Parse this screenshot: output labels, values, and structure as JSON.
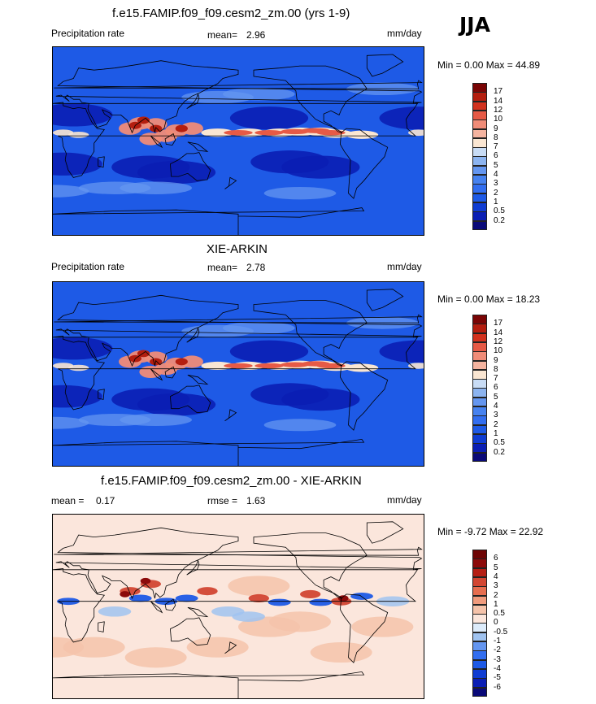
{
  "header": {
    "season": "JJA"
  },
  "panels": [
    {
      "title": "f.e15.FAMIP.f09_f09.cesm2_zm.00 (yrs 1-9)",
      "left_label": "Precipitation rate",
      "center_label": "mean=",
      "center_value": "2.96",
      "right_label": "mm/day",
      "minmax": "Min =   0.00 Max =  44.89",
      "colorbar_labels": [
        "17",
        "14",
        "12",
        "10",
        "9",
        "8",
        "7",
        "6",
        "5",
        "4",
        "3",
        "2",
        "1",
        "0.5",
        "0.2"
      ]
    },
    {
      "title": "XIE-ARKIN",
      "left_label": "Precipitation rate",
      "center_label": "mean=",
      "center_value": "2.78",
      "right_label": "mm/day",
      "minmax": "Min =   0.00 Max =  18.23",
      "colorbar_labels": [
        "17",
        "14",
        "12",
        "10",
        "9",
        "8",
        "7",
        "6",
        "5",
        "4",
        "3",
        "2",
        "1",
        "0.5",
        "0.2"
      ]
    },
    {
      "title": "f.e15.FAMIP.f09_f09.cesm2_zm.00 - XIE-ARKIN",
      "left_label": "mean =",
      "left_value": "0.17",
      "center_label": "rmse =",
      "center_value": "1.63",
      "right_label": "mm/day",
      "minmax": "Min =  -9.72 Max =  22.92",
      "colorbar_labels": [
        "6",
        "5",
        "4",
        "3",
        "2",
        "1",
        "0.5",
        "0",
        "-0.5",
        "-1",
        "-2",
        "-3",
        "-4",
        "-5",
        "-6"
      ]
    }
  ],
  "chart_data": [
    {
      "type": "heatmap",
      "title": "f.e15.FAMIP.f09_f09.cesm2_zm.00 (yrs 1-9)",
      "variable": "Precipitation rate",
      "units": "mm/day",
      "mean": 2.96,
      "min": 0.0,
      "max": 44.89,
      "levels": [
        0.2,
        0.5,
        1,
        2,
        3,
        4,
        5,
        6,
        7,
        8,
        9,
        10,
        12,
        14,
        17
      ],
      "colors": [
        "#0a0a78",
        "#0a1eb4",
        "#0f3cd2",
        "#1e5ae6",
        "#326ef0",
        "#4682f0",
        "#6496f0",
        "#8cb4f0",
        "#c8dcf5",
        "#fae6d2",
        "#f5b4a0",
        "#f08c78",
        "#e65a46",
        "#d2321e",
        "#b41e0f",
        "#7a0505"
      ]
    },
    {
      "type": "heatmap",
      "title": "XIE-ARKIN",
      "variable": "Precipitation rate",
      "units": "mm/day",
      "mean": 2.78,
      "min": 0.0,
      "max": 18.23,
      "levels": [
        0.2,
        0.5,
        1,
        2,
        3,
        4,
        5,
        6,
        7,
        8,
        9,
        10,
        12,
        14,
        17
      ],
      "colors": [
        "#0a0a78",
        "#0a1eb4",
        "#0f3cd2",
        "#1e5ae6",
        "#326ef0",
        "#4682f0",
        "#6496f0",
        "#8cb4f0",
        "#c8dcf5",
        "#fae6d2",
        "#f5b4a0",
        "#f08c78",
        "#e65a46",
        "#d2321e",
        "#b41e0f",
        "#7a0505"
      ]
    },
    {
      "type": "heatmap",
      "title": "f.e15.FAMIP.f09_f09.cesm2_zm.00 - XIE-ARKIN",
      "units": "mm/day",
      "mean": 0.17,
      "rmse": 1.63,
      "min": -9.72,
      "max": 22.92,
      "levels": [
        -6,
        -5,
        -4,
        -3,
        -2,
        -1,
        -0.5,
        0,
        0.5,
        1,
        2,
        3,
        4,
        5,
        6
      ],
      "colors": [
        "#0a0a78",
        "#0a1eb4",
        "#0f3cd2",
        "#1e5ae6",
        "#326ef0",
        "#6496f0",
        "#a0c3f0",
        "#dcebfa",
        "#fbe6dc",
        "#f5c3aa",
        "#f09b7d",
        "#e66e50",
        "#d24632",
        "#b41e14",
        "#8c0a0a",
        "#6e0505"
      ]
    }
  ]
}
